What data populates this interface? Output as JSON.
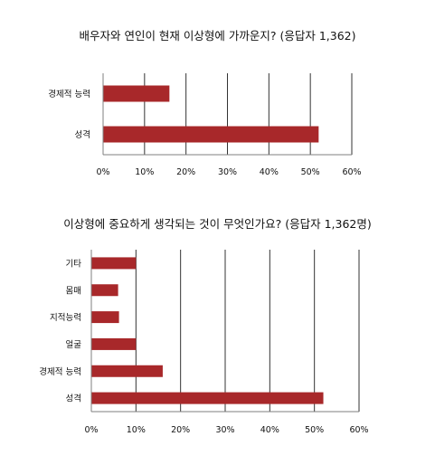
{
  "colors": {
    "bar": "#a8282a",
    "grid": "#333333",
    "axis": "#7f7f7f"
  },
  "chart_data": [
    {
      "type": "bar",
      "orientation": "horizontal",
      "title": "배우자와 연인이 현재 이상형에 가까운지? (응답자 1,362)",
      "categories": [
        "경제적 능력",
        "성격"
      ],
      "values": [
        16,
        52
      ],
      "xlim": [
        0,
        60
      ],
      "xticks": [
        "0%",
        "10%",
        "20%",
        "30%",
        "40%",
        "50%",
        "60%"
      ],
      "grid": true,
      "legend": "none"
    },
    {
      "type": "bar",
      "orientation": "horizontal",
      "title": "이상형에 중요하게 생각되는 것이 무엇인가요? (응답자 1,362명)",
      "categories": [
        "기타",
        "몸매",
        "지적능력",
        "얼굴",
        "경제적 능력",
        "성격"
      ],
      "values": [
        10,
        6,
        6.2,
        10,
        16,
        52
      ],
      "xlim": [
        0,
        60
      ],
      "xticks": [
        "0%",
        "10%",
        "20%",
        "30%",
        "40%",
        "50%",
        "60%"
      ],
      "grid": true,
      "legend": "none"
    }
  ]
}
